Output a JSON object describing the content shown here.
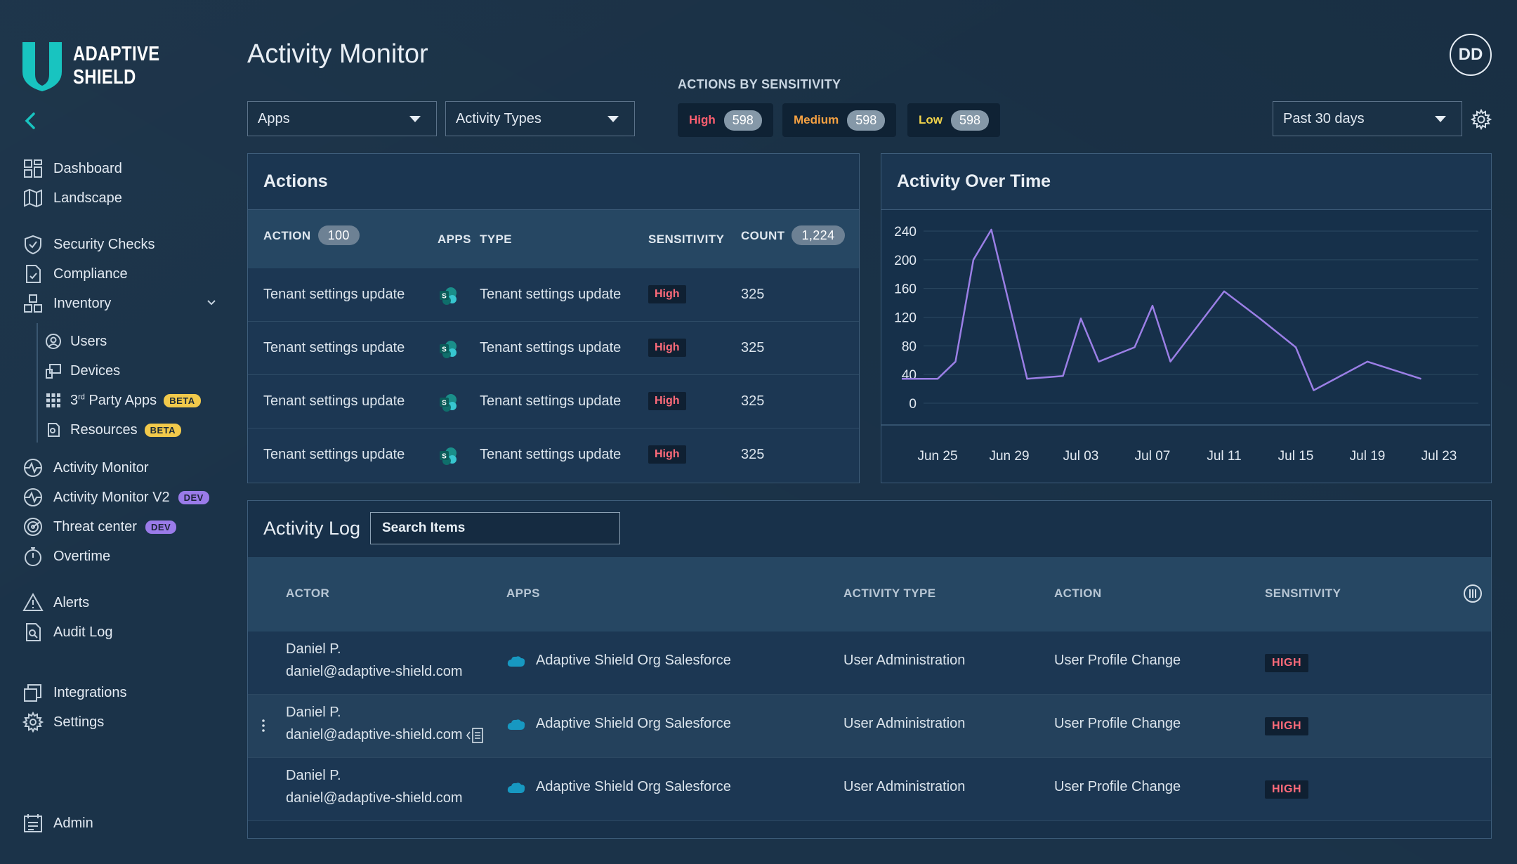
{
  "brand": {
    "line1": "ADAPTIVE",
    "line2": "SHIELD"
  },
  "sidebar": {
    "items": [
      {
        "label": "Dashboard"
      },
      {
        "label": "Landscape"
      },
      {
        "label": "Security Checks"
      },
      {
        "label": "Compliance"
      },
      {
        "label": "Inventory"
      },
      {
        "label": "Users"
      },
      {
        "label": "Devices"
      },
      {
        "label_prefix": "3",
        "label_sup": "rd",
        "label_suffix": " Party Apps",
        "badge": "BETA"
      },
      {
        "label": "Resources",
        "badge": "BETA"
      },
      {
        "label": "Activity Monitor"
      },
      {
        "label": "Activity Monitor V2",
        "badge": "DEV"
      },
      {
        "label": "Threat center",
        "badge": "DEV"
      },
      {
        "label": "Overtime"
      },
      {
        "label": "Alerts"
      },
      {
        "label": "Audit Log"
      },
      {
        "label": "Integrations"
      },
      {
        "label": "Settings"
      },
      {
        "label": "Admin"
      }
    ]
  },
  "header": {
    "title": "Activity Monitor",
    "avatar_initials": "DD"
  },
  "filters": {
    "apps": "Apps",
    "activity_types": "Activity Types",
    "period": "Past 30 days"
  },
  "sensitivity_summary": {
    "title": "ACTIONS BY SENSITIVITY",
    "items": [
      {
        "label": "High",
        "count": "598",
        "color": "#ff5f70"
      },
      {
        "label": "Medium",
        "count": "598",
        "color": "#f5a142"
      },
      {
        "label": "Low",
        "count": "598",
        "color": "#f1d34b"
      }
    ]
  },
  "actions_panel": {
    "title": "Actions",
    "columns": {
      "action": "ACTION",
      "action_count": "100",
      "apps": "APPS",
      "type": "TYPE",
      "sensitivity": "SENSITIVITY",
      "count": "COUNT",
      "count_total": "1,224"
    },
    "rows": [
      {
        "action": "Tenant settings update",
        "type": "Tenant settings update",
        "sensitivity": "High",
        "count": "325",
        "app_icon": "sharepoint-icon"
      },
      {
        "action": "Tenant settings update",
        "type": "Tenant settings update",
        "sensitivity": "High",
        "count": "325",
        "app_icon": "sharepoint-icon"
      },
      {
        "action": "Tenant settings update",
        "type": "Tenant settings update",
        "sensitivity": "High",
        "count": "325",
        "app_icon": "sharepoint-icon"
      },
      {
        "action": "Tenant settings update",
        "type": "Tenant settings update",
        "sensitivity": "High",
        "count": "325",
        "app_icon": "sharepoint-icon"
      }
    ]
  },
  "chart_panel": {
    "title": "Activity Over Time"
  },
  "chart_data": {
    "type": "line",
    "title": "Activity Over Time",
    "x_tick_labels": [
      "Jun 25",
      "Jun 29",
      "Jul 03",
      "Jul 07",
      "Jul 11",
      "Jul 15",
      "Jul 19",
      "Jul 23"
    ],
    "y_ticks": [
      0,
      40,
      80,
      120,
      160,
      200,
      240
    ],
    "ylim": [
      0,
      240
    ],
    "grid": true,
    "color": "#9b7fe6",
    "series": [
      {
        "values": [
          {
            "x": "Jun 23",
            "y": 34
          },
          {
            "x": "Jun 25",
            "y": 34
          },
          {
            "x": "Jun 26",
            "y": 58
          },
          {
            "x": "Jun 27",
            "y": 200
          },
          {
            "x": "Jun 28",
            "y": 242
          },
          {
            "x": "Jun 30",
            "y": 34
          },
          {
            "x": "Jul 02",
            "y": 38
          },
          {
            "x": "Jul 03",
            "y": 118
          },
          {
            "x": "Jul 04",
            "y": 58
          },
          {
            "x": "Jul 06",
            "y": 78
          },
          {
            "x": "Jul 07",
            "y": 136
          },
          {
            "x": "Jul 08",
            "y": 58
          },
          {
            "x": "Jul 11",
            "y": 156
          },
          {
            "x": "Jul 13",
            "y": 118
          },
          {
            "x": "Jul 15",
            "y": 78
          },
          {
            "x": "Jul 16",
            "y": 18
          },
          {
            "x": "Jul 19",
            "y": 58
          },
          {
            "x": "Jul 22",
            "y": 34
          }
        ]
      }
    ]
  },
  "activity_log": {
    "title": "Activity Log",
    "search_placeholder": "Search Items",
    "columns": {
      "actor": "ACTOR",
      "apps": "APPS",
      "activity_type": "ACTIVITY TYPE",
      "action": "ACTION",
      "sensitivity": "SENSITIVITY"
    },
    "rows": [
      {
        "actor_name": "Daniel P.",
        "actor_email": "daniel@adaptive-shield.com",
        "app": "Adaptive Shield Org Salesforce",
        "activity_type": "User Administration",
        "action": "User Profile Change",
        "sensitivity": "HIGH"
      },
      {
        "actor_name": "Daniel P.",
        "actor_email": "daniel@adaptive-shield.com",
        "app": "Adaptive Shield Org Salesforce",
        "activity_type": "User Administration",
        "action": "User Profile Change",
        "sensitivity": "HIGH"
      },
      {
        "actor_name": "Daniel P.",
        "actor_email": "daniel@adaptive-shield.com",
        "app": "Adaptive Shield Org Salesforce",
        "activity_type": "User Administration",
        "action": "User Profile Change",
        "sensitivity": "HIGH"
      }
    ]
  }
}
